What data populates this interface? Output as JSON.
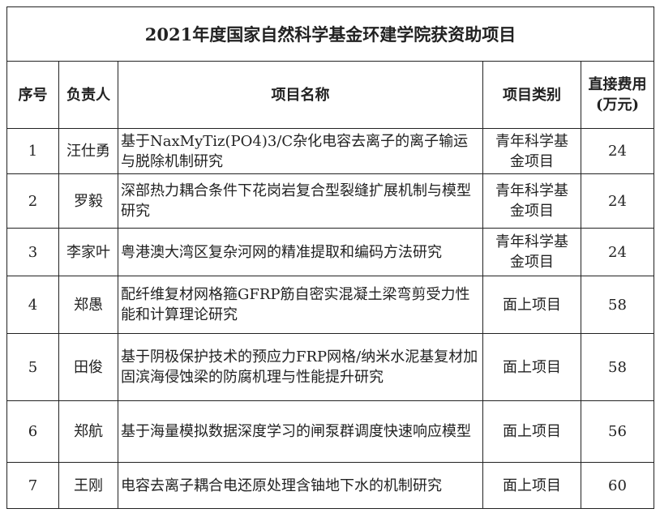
{
  "title": "2021年度国家自然科学基金环建学院获资助项目",
  "headers": {
    "no": "序号",
    "leader": "负责人",
    "name": "项目名称",
    "category": "项目类别",
    "funding": "直接费用(万元)"
  },
  "rows": [
    {
      "no": "1",
      "leader": "汪仕勇",
      "name": "基于NaxMyTiz(PO4)3/C杂化电容去离子的离子输运与脱除机制研究",
      "category": "青年科学基金项目",
      "funding": "24"
    },
    {
      "no": "2",
      "leader": "罗毅",
      "name": "深部热力耦合条件下花岗岩复合型裂缝扩展机制与模型研究",
      "category": "青年科学基金项目",
      "funding": "24"
    },
    {
      "no": "3",
      "leader": "李家叶",
      "name": "粤港澳大湾区复杂河网的精准提取和编码方法研究",
      "category": "青年科学基金项目",
      "funding": "24"
    },
    {
      "no": "4",
      "leader": "郑愚",
      "name": "配纤维复材网格箍GFRP筋自密实混凝土梁弯剪受力性能和计算理论研究",
      "category": "面上项目",
      "funding": "58"
    },
    {
      "no": "5",
      "leader": "田俊",
      "name": "基于阴极保护技术的预应力FRP网格/纳米水泥基复材加固滨海侵蚀梁的防腐机理与性能提升研究",
      "category": "面上项目",
      "funding": "58"
    },
    {
      "no": "6",
      "leader": "郑航",
      "name": "基于海量模拟数据深度学习的闸泵群调度快速响应模型",
      "category": "面上项目",
      "funding": "56"
    },
    {
      "no": "7",
      "leader": "王刚",
      "name": "电容去离子耦合电还原处理含铀地下水的机制研究",
      "category": "面上项目",
      "funding": "60"
    }
  ]
}
